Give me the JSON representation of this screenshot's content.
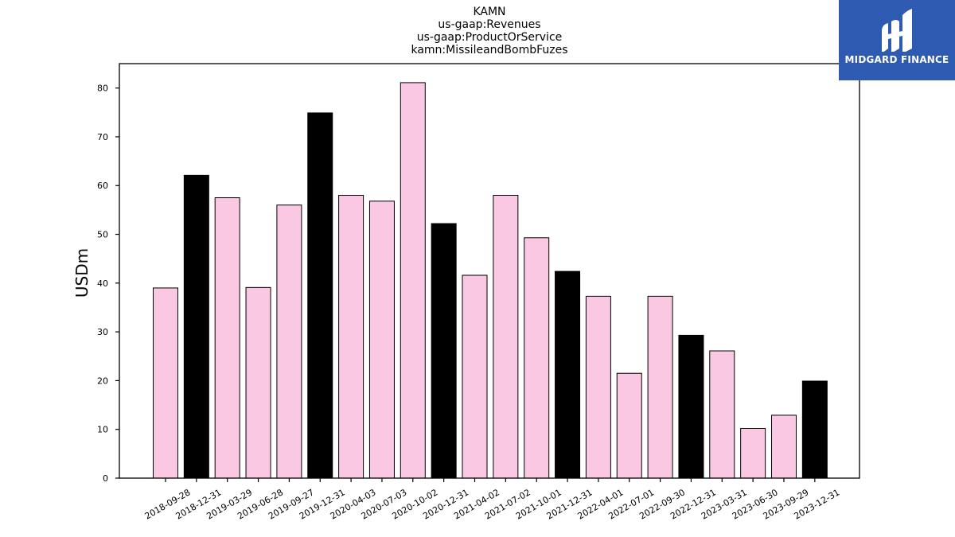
{
  "chart_data": {
    "type": "bar",
    "title_lines": [
      "KAMN",
      "us-gaap:Revenues",
      "us-gaap:ProductOrService",
      "kamn:MissileandBombFuzes"
    ],
    "xlabel": "",
    "ylabel": "USDm",
    "ylim": [
      0,
      85
    ],
    "yticks": [
      0,
      10,
      20,
      30,
      40,
      50,
      60,
      70,
      80
    ],
    "grid": false,
    "categories": [
      "2018-09-28",
      "2018-12-31",
      "2019-03-29",
      "2019-06-28",
      "2019-09-27",
      "2019-12-31",
      "2020-04-03",
      "2020-07-03",
      "2020-10-02",
      "2020-12-31",
      "2021-04-02",
      "2021-07-02",
      "2021-10-01",
      "2021-12-31",
      "2022-04-01",
      "2022-07-01",
      "2022-09-30",
      "2022-12-31",
      "2023-03-31",
      "2023-06-30",
      "2023-09-29",
      "2023-12-31"
    ],
    "values": [
      39.0,
      62.1,
      57.5,
      39.1,
      56.0,
      74.9,
      58.0,
      56.8,
      81.1,
      52.2,
      41.6,
      58.0,
      49.3,
      42.4,
      37.3,
      21.5,
      37.3,
      29.3,
      26.1,
      10.2,
      12.9,
      19.9
    ],
    "bar_colors": [
      "#fbc8e3",
      "#000000",
      "#fbc8e3",
      "#fbc8e3",
      "#fbc8e3",
      "#000000",
      "#fbc8e3",
      "#fbc8e3",
      "#fbc8e3",
      "#000000",
      "#fbc8e3",
      "#fbc8e3",
      "#fbc8e3",
      "#000000",
      "#fbc8e3",
      "#fbc8e3",
      "#fbc8e3",
      "#000000",
      "#fbc8e3",
      "#fbc8e3",
      "#fbc8e3",
      "#000000"
    ]
  },
  "logo": {
    "text": "MIDGARD FINANCE",
    "color": "#2f5ab2"
  }
}
